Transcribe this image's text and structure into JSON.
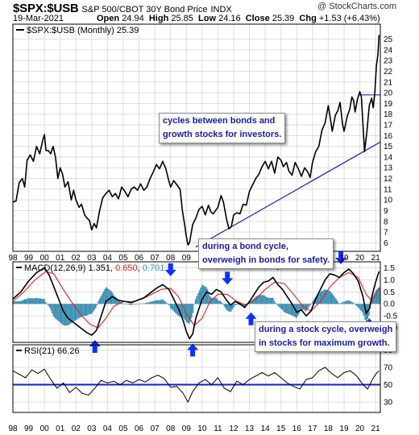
{
  "header": {
    "symbol": "$SPX:$USB",
    "name": "S&P 500/CBOT 30Y Bond Price",
    "exchange": "INDX",
    "date": "19-Mar-2021",
    "open_label": "Open",
    "open": "24.94",
    "high_label": "High",
    "high": "25.85",
    "low_label": "Low",
    "low": "24.16",
    "close_label": "Close",
    "close": "25.39",
    "chg_label": "Chg",
    "chg": "+1.53 (+6.43%)",
    "brand": "@ StockCharts.com"
  },
  "annotations": {
    "top": "cycles between bonds and\ngrowth stocks for investors.",
    "bond": "during a bond cycle,\noverweigh in bonds for safety.",
    "stock": "during a stock cycle, overweigh\nin stocks for maximum growth."
  },
  "colors": {
    "price": "#000000",
    "trendline": "#2020c8",
    "signal": "#e02020",
    "histogram": "#3b8fb3",
    "arrow": "#1030ff",
    "macd_value2": "#e02020",
    "macd_value3": "#2a9ab8"
  },
  "chart_data": [
    {
      "type": "line",
      "panel": "price",
      "legend": "$SPX:$USB (Monthly) 25.39",
      "y_ticks": [
        6,
        7,
        8,
        9,
        10,
        11,
        12,
        13,
        14,
        15,
        16,
        17,
        18,
        19,
        20,
        21,
        22,
        23,
        24,
        25
      ],
      "ylim": [
        5.2,
        26.4
      ],
      "x_ticks": [
        "98",
        "99",
        "00",
        "01",
        "02",
        "03",
        "04",
        "05",
        "06",
        "07",
        "08",
        "09",
        "10",
        "11",
        "12",
        "13",
        "14",
        "15",
        "16",
        "17",
        "18",
        "19",
        "20",
        "21"
      ],
      "x_range": [
        1998.0,
        2021.3
      ],
      "series": [
        {
          "x": [
            1998.0,
            1998.2,
            1998.4,
            1998.6,
            1998.75,
            1998.9,
            1999.1,
            1999.3,
            1999.5,
            1999.7,
            1999.9,
            2000.0,
            2000.1,
            2000.25,
            2000.4,
            2000.55,
            2000.7,
            2000.85,
            2001.0,
            2001.15,
            2001.3,
            2001.5,
            2001.7,
            2001.85,
            2002.0,
            2002.2,
            2002.35,
            2002.55,
            2002.7,
            2002.85,
            2003.0,
            2003.15,
            2003.3,
            2003.5,
            2003.7,
            2003.9,
            2004.1,
            2004.3,
            2004.5,
            2004.7,
            2004.9,
            2005.1,
            2005.3,
            2005.5,
            2005.7,
            2005.9,
            2006.1,
            2006.3,
            2006.5,
            2006.7,
            2006.9,
            2007.1,
            2007.3,
            2007.5,
            2007.7,
            2007.85,
            2008.0,
            2008.2,
            2008.4,
            2008.6,
            2008.75,
            2008.9,
            2009.0,
            2009.1,
            2009.2,
            2009.4,
            2009.6,
            2009.8,
            2010.0,
            2010.2,
            2010.4,
            2010.55,
            2010.7,
            2010.85,
            2011.0,
            2011.2,
            2011.35,
            2011.55,
            2011.7,
            2011.85,
            2012.0,
            2012.2,
            2012.4,
            2012.6,
            2012.8,
            2013.0,
            2013.2,
            2013.4,
            2013.6,
            2013.8,
            2014.0,
            2014.2,
            2014.4,
            2014.6,
            2014.8,
            2015.0,
            2015.15,
            2015.35,
            2015.5,
            2015.7,
            2015.9,
            2016.1,
            2016.3,
            2016.5,
            2016.7,
            2016.85,
            2017.0,
            2017.2,
            2017.4,
            2017.6,
            2017.8,
            2018.0,
            2018.1,
            2018.25,
            2018.45,
            2018.6,
            2018.75,
            2018.9,
            2019.0,
            2019.2,
            2019.35,
            2019.5,
            2019.6,
            2019.7,
            2019.85,
            2020.0,
            2020.1,
            2020.2,
            2020.3,
            2020.45,
            2020.6,
            2020.75,
            2020.85,
            2020.95,
            2021.05,
            2021.15,
            2021.22
          ],
          "y": [
            9.8,
            9.9,
            11.6,
            12.0,
            11.2,
            13.7,
            14.2,
            13.6,
            15.0,
            14.3,
            15.6,
            16.1,
            14.6,
            14.6,
            14.3,
            15.0,
            14.0,
            12.0,
            13.0,
            12.4,
            11.2,
            11.7,
            10.0,
            10.9,
            10.0,
            9.3,
            9.6,
            8.6,
            8.3,
            8.1,
            7.2,
            7.8,
            7.4,
            9.0,
            10.2,
            10.6,
            10.9,
            10.3,
            10.6,
            10.1,
            11.2,
            10.8,
            10.3,
            11.0,
            11.2,
            10.9,
            11.5,
            10.9,
            11.2,
            12.0,
            12.6,
            13.3,
            12.9,
            13.6,
            12.9,
            12.0,
            11.2,
            11.8,
            11.4,
            11.0,
            9.0,
            7.6,
            6.6,
            5.8,
            6.0,
            7.7,
            8.3,
            9.1,
            9.4,
            8.6,
            9.5,
            8.9,
            8.7,
            9.0,
            9.3,
            10.4,
            9.8,
            8.2,
            7.3,
            7.5,
            8.6,
            8.8,
            8.7,
            9.6,
            9.5,
            10.8,
            11.4,
            12.0,
            12.4,
            13.1,
            13.6,
            12.9,
            13.6,
            12.5,
            14.0,
            13.7,
            13.1,
            13.5,
            12.7,
            12.3,
            13.5,
            12.9,
            12.2,
            13.0,
            12.6,
            12.1,
            13.5,
            14.5,
            15.0,
            16.5,
            17.2,
            18.8,
            17.9,
            16.4,
            17.9,
            18.3,
            19.1,
            17.1,
            16.4,
            17.8,
            18.4,
            19.6,
            19.3,
            18.2,
            19.4,
            20.1,
            19.6,
            17.0,
            14.5,
            16.4,
            18.8,
            19.5,
            18.6,
            20.0,
            22.5,
            23.6,
            25.4
          ]
        }
      ],
      "trendline": {
        "x": [
          2009.6,
          2021.3
        ],
        "y": [
          5.6,
          15.4
        ]
      },
      "resistance": {
        "x": [
          2019.9,
          2021.3
        ],
        "y": [
          19.8,
          19.8
        ]
      }
    },
    {
      "type": "line",
      "panel": "macd",
      "legend": "MACD(12,26,9)",
      "values_text": [
        "1.351",
        "0.650",
        "0.701"
      ],
      "y_ticks": [
        -1.0,
        -0.5,
        0.0,
        0.5,
        1.0,
        1.5
      ],
      "ylim": [
        -1.6,
        1.75
      ],
      "series": [
        {
          "name": "MACD",
          "x": [
            1998.0,
            1998.5,
            1999.0,
            1999.5,
            2000.0,
            2000.3,
            2000.6,
            2000.9,
            2001.2,
            2001.5,
            2001.8,
            2002.1,
            2002.4,
            2002.7,
            2003.0,
            2003.3,
            2003.6,
            2003.9,
            2004.3,
            2004.7,
            2005.1,
            2005.5,
            2005.9,
            2006.3,
            2006.7,
            2007.1,
            2007.5,
            2007.9,
            2008.2,
            2008.5,
            2008.8,
            2009.0,
            2009.2,
            2009.4,
            2009.6,
            2009.8,
            2010.0,
            2010.3,
            2010.6,
            2010.9,
            2011.2,
            2011.5,
            2011.8,
            2012.1,
            2012.4,
            2012.7,
            2013.0,
            2013.3,
            2013.6,
            2013.9,
            2014.2,
            2014.5,
            2014.8,
            2015.1,
            2015.4,
            2015.7,
            2016.0,
            2016.3,
            2016.6,
            2016.9,
            2017.2,
            2017.5,
            2017.8,
            2018.1,
            2018.4,
            2018.7,
            2019.0,
            2019.3,
            2019.6,
            2019.9,
            2020.2,
            2020.4,
            2020.6,
            2020.8,
            2021.0,
            2021.22
          ],
          "y": [
            0.2,
            0.5,
            0.95,
            1.3,
            1.5,
            1.2,
            0.7,
            0.2,
            -0.3,
            -0.6,
            -0.75,
            -0.9,
            -1.05,
            -1.2,
            -1.3,
            -1.1,
            -0.5,
            0.1,
            0.3,
            0.15,
            0.1,
            0.05,
            0.15,
            0.25,
            0.45,
            0.65,
            0.8,
            0.6,
            0.2,
            -0.2,
            -0.7,
            -1.15,
            -1.45,
            -1.25,
            -0.6,
            -0.2,
            0.2,
            0.5,
            0.4,
            0.6,
            0.5,
            0.2,
            -0.05,
            0.1,
            0.0,
            -0.15,
            0.1,
            0.4,
            0.7,
            0.9,
            0.95,
            1.1,
            0.8,
            0.6,
            0.3,
            0.0,
            -0.35,
            -0.25,
            -0.5,
            -0.3,
            0.2,
            0.6,
            1.0,
            1.25,
            1.2,
            1.1,
            1.3,
            1.45,
            1.25,
            0.95,
            0.3,
            -0.4,
            -0.2,
            0.4,
            0.9,
            1.35
          ]
        },
        {
          "name": "Signal",
          "x": [
            1998.0,
            1998.7,
            1999.4,
            2000.1,
            2000.6,
            2001.1,
            2001.7,
            2002.3,
            2002.9,
            2003.4,
            2003.9,
            2004.4,
            2005.0,
            2005.6,
            2006.2,
            2006.8,
            2007.4,
            2008.0,
            2008.5,
            2009.0,
            2009.5,
            2010.0,
            2010.5,
            2011.0,
            2011.6,
            2012.2,
            2012.8,
            2013.4,
            2014.0,
            2014.6,
            2015.2,
            2015.8,
            2016.4,
            2016.9,
            2017.5,
            2018.1,
            2018.7,
            2019.3,
            2019.9,
            2020.4,
            2020.8,
            2021.22
          ],
          "y": [
            0.1,
            0.5,
            1.0,
            1.35,
            1.25,
            0.7,
            0.1,
            -0.45,
            -0.85,
            -1.0,
            -0.6,
            -0.1,
            0.1,
            0.1,
            0.2,
            0.4,
            0.6,
            0.65,
            0.3,
            -0.4,
            -0.9,
            -0.6,
            0.1,
            0.4,
            0.4,
            0.1,
            -0.05,
            0.2,
            0.6,
            0.9,
            0.85,
            0.4,
            -0.1,
            -0.3,
            0.1,
            0.7,
            1.1,
            1.3,
            1.1,
            0.4,
            0.1,
            0.65
          ]
        }
      ],
      "arrows": [
        {
          "x": 2003.2,
          "y": -1.3,
          "dir": "up"
        },
        {
          "x": 2008.0,
          "y": 0.95,
          "dir": "down"
        },
        {
          "x": 2009.4,
          "y": -1.45,
          "dir": "up"
        },
        {
          "x": 2011.6,
          "y": 0.6,
          "dir": "down"
        },
        {
          "x": 2013.1,
          "y": -0.15,
          "dir": "up"
        },
        {
          "x": 2014.8,
          "y": 1.2,
          "dir": "down"
        },
        {
          "x": 2016.7,
          "y": -0.5,
          "dir": "up"
        },
        {
          "x": 2018.8,
          "y": 1.45,
          "dir": "down"
        },
        {
          "x": 2020.6,
          "y": -0.4,
          "dir": "up"
        }
      ]
    },
    {
      "type": "line",
      "panel": "rsi",
      "legend": "RSI(21) 66.26",
      "y_ticks": [
        30,
        50,
        70,
        90
      ],
      "ylim": [
        18,
        96
      ],
      "reference_line": 50,
      "series": [
        {
          "x": [
            1998.0,
            1998.4,
            1998.8,
            1999.2,
            1999.6,
            2000.0,
            2000.4,
            2000.8,
            2001.2,
            2001.6,
            2002.0,
            2002.4,
            2002.8,
            2003.2,
            2003.6,
            2004.0,
            2004.4,
            2004.8,
            2005.2,
            2005.6,
            2006.0,
            2006.4,
            2006.8,
            2007.2,
            2007.6,
            2008.0,
            2008.4,
            2008.8,
            2009.1,
            2009.4,
            2009.8,
            2010.2,
            2010.6,
            2011.0,
            2011.4,
            2011.8,
            2012.2,
            2012.6,
            2013.0,
            2013.4,
            2013.8,
            2014.2,
            2014.6,
            2015.0,
            2015.4,
            2015.8,
            2016.2,
            2016.6,
            2017.0,
            2017.4,
            2017.8,
            2018.2,
            2018.6,
            2019.0,
            2019.4,
            2019.8,
            2020.2,
            2020.5,
            2020.8,
            2021.0,
            2021.22
          ],
          "y": [
            66,
            62,
            58,
            67,
            63,
            68,
            56,
            46,
            52,
            41,
            47,
            40,
            38,
            46,
            55,
            52,
            54,
            50,
            55,
            52,
            56,
            53,
            58,
            61,
            57,
            47,
            48,
            40,
            30,
            42,
            52,
            56,
            50,
            58,
            46,
            42,
            54,
            50,
            56,
            60,
            64,
            60,
            64,
            58,
            52,
            48,
            45,
            56,
            58,
            66,
            70,
            63,
            58,
            64,
            66,
            60,
            50,
            45,
            56,
            62,
            66
          ]
        }
      ]
    }
  ]
}
